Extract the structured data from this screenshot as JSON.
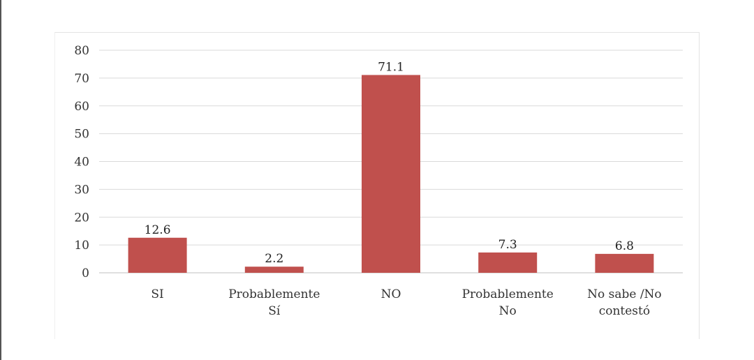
{
  "chart_data": {
    "type": "bar",
    "title": "",
    "xlabel": "",
    "ylabel": "",
    "categories": [
      [
        "SI"
      ],
      [
        "Probablemente",
        "Sí"
      ],
      [
        "NO"
      ],
      [
        "Probablemente",
        "No"
      ],
      [
        "No sabe /No",
        "contestó"
      ]
    ],
    "values": [
      12.6,
      2.2,
      71.1,
      7.3,
      6.8
    ],
    "value_labels": [
      "12.6",
      "2.2",
      "71.1",
      "7.3",
      "6.8"
    ],
    "ylim": [
      0,
      80
    ],
    "yticks": [
      0,
      10,
      20,
      30,
      40,
      50,
      60,
      70,
      80
    ],
    "grid": true,
    "legend": "none",
    "bar_color": "#c0504d"
  }
}
